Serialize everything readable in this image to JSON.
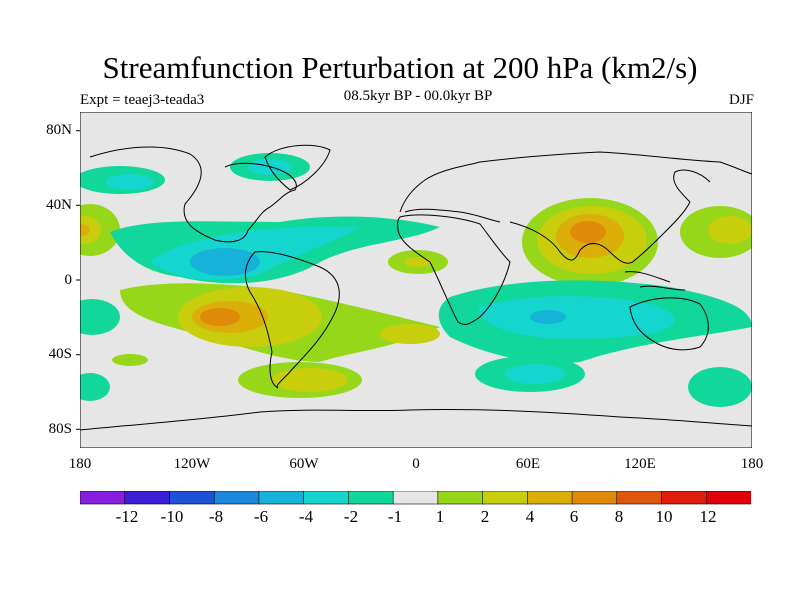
{
  "title": "Streamfunction Perturbation at 200 hPa (km2/s)",
  "left_label": "Expt = teaej3-teada3",
  "center_label": "08.5kyr BP - 00.0kyr BP",
  "right_label": "DJF",
  "y_ticks": [
    "80N",
    "40N",
    "0",
    "40S",
    "80S"
  ],
  "x_ticks": [
    "180",
    "120W",
    "60W",
    "0",
    "60E",
    "120E",
    "180"
  ],
  "colorbar": {
    "labels": [
      "-12",
      "-10",
      "-8",
      "-6",
      "-4",
      "-2",
      "-1",
      "1",
      "2",
      "4",
      "6",
      "8",
      "10",
      "12"
    ],
    "colors": [
      "#8a1ee0",
      "#3a1fd6",
      "#1d52d8",
      "#1c86dc",
      "#16b2d8",
      "#15d6cf",
      "#12d79a",
      "#e6e6e6",
      "#96d71a",
      "#c8ce0c",
      "#dcae0a",
      "#e08a0a",
      "#e0560a",
      "#e11e0a",
      "#e0000a"
    ]
  },
  "chart_data": {
    "type": "heatmap",
    "title": "Streamfunction Perturbation at 200 hPa (km2/s)",
    "subtitle": "08.5kyr BP - 00.0kyr BP",
    "season": "DJF",
    "xlim": [
      -180,
      180
    ],
    "ylim": [
      -90,
      90
    ],
    "levels": [
      -12,
      -10,
      -8,
      -6,
      -4,
      -2,
      -1,
      1,
      2,
      4,
      6,
      8,
      10,
      12
    ],
    "features": [
      {
        "region": "tropical Atlantic / northern South America",
        "sign": "negative",
        "min": -6
      },
      {
        "region": "South America subtropics",
        "sign": "positive",
        "max": 6
      },
      {
        "region": "South Asia / Tibetan Plateau",
        "sign": "positive",
        "max": 6
      },
      {
        "region": "Southern Indian Ocean",
        "sign": "negative",
        "min": -4
      },
      {
        "region": "Southern Ocean south of Australia",
        "sign": "negative",
        "min": -4
      },
      {
        "region": "South Atlantic midlatitudes",
        "sign": "positive",
        "max": 4
      },
      {
        "region": "North Atlantic / Greenland",
        "sign": "negative",
        "min": -4
      }
    ]
  }
}
